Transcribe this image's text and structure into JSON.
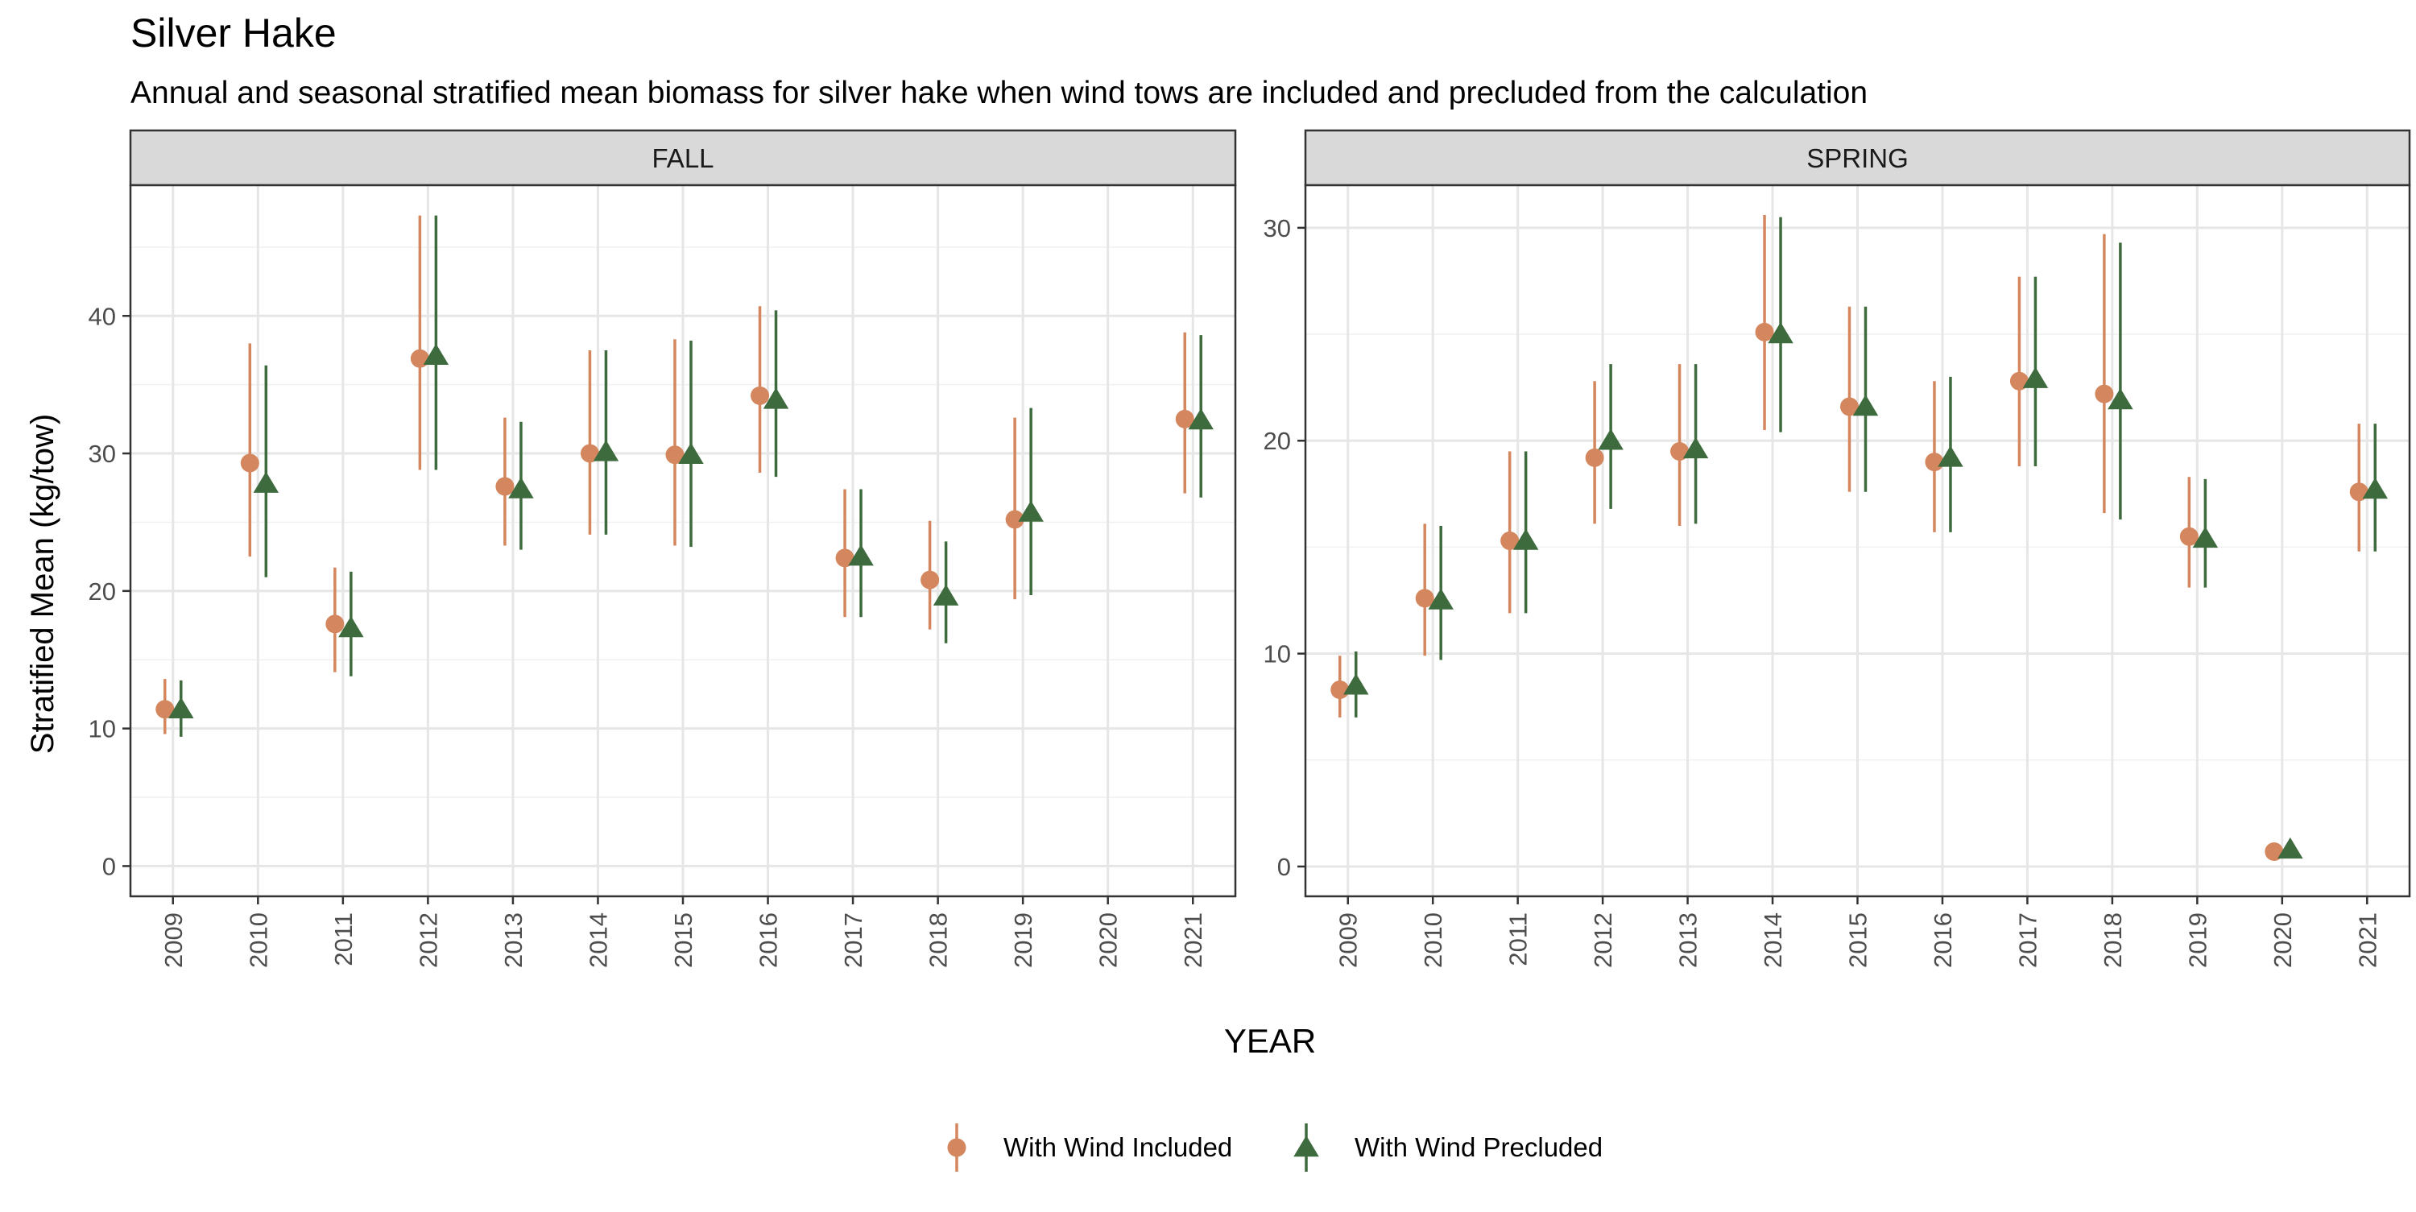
{
  "chart_data": {
    "type": "scatter",
    "title": "Silver Hake",
    "subtitle": "Annual and seasonal stratified mean biomass for silver hake when wind tows are included and precluded from the calculation",
    "xlabel": "YEAR",
    "ylabel": "Stratified Mean (kg/tow)",
    "grid": true,
    "legend_position": "bottom",
    "categories": [
      "2009",
      "2010",
      "2011",
      "2012",
      "2013",
      "2014",
      "2015",
      "2016",
      "2017",
      "2018",
      "2019",
      "2020",
      "2021"
    ],
    "series_styles": [
      {
        "name": "With Wind Included",
        "marker": "circle",
        "color": "#D4875E"
      },
      {
        "name": "With Wind Precluded",
        "marker": "triangle",
        "color": "#3E6B3E"
      }
    ],
    "panels": [
      {
        "label": "FALL",
        "ylim": [
          -2.2,
          49.5
        ],
        "yticks": [
          0,
          10,
          20,
          30,
          40
        ],
        "series": [
          {
            "name": "With Wind Included",
            "values": [
              {
                "year": "2009",
                "mean": 11.4,
                "low": 9.6,
                "high": 13.6
              },
              {
                "year": "2010",
                "mean": 29.3,
                "low": 22.5,
                "high": 38.0
              },
              {
                "year": "2011",
                "mean": 17.6,
                "low": 14.1,
                "high": 21.7
              },
              {
                "year": "2012",
                "mean": 36.9,
                "low": 28.8,
                "high": 47.3
              },
              {
                "year": "2013",
                "mean": 27.6,
                "low": 23.3,
                "high": 32.6
              },
              {
                "year": "2014",
                "mean": 30.0,
                "low": 24.1,
                "high": 37.5
              },
              {
                "year": "2015",
                "mean": 29.9,
                "low": 23.3,
                "high": 38.3
              },
              {
                "year": "2016",
                "mean": 34.2,
                "low": 28.6,
                "high": 40.7
              },
              {
                "year": "2017",
                "mean": 22.4,
                "low": 18.1,
                "high": 27.4
              },
              {
                "year": "2018",
                "mean": 20.8,
                "low": 17.2,
                "high": 25.1
              },
              {
                "year": "2019",
                "mean": 25.2,
                "low": 19.4,
                "high": 32.6
              },
              {
                "year": "2020",
                "mean": null,
                "low": null,
                "high": null
              },
              {
                "year": "2021",
                "mean": 32.5,
                "low": 27.1,
                "high": 38.8
              }
            ]
          },
          {
            "name": "With Wind Precluded",
            "values": [
              {
                "year": "2009",
                "mean": 11.4,
                "low": 9.4,
                "high": 13.5
              },
              {
                "year": "2010",
                "mean": 27.8,
                "low": 21.0,
                "high": 36.4
              },
              {
                "year": "2011",
                "mean": 17.3,
                "low": 13.8,
                "high": 21.4
              },
              {
                "year": "2012",
                "mean": 37.1,
                "low": 28.8,
                "high": 47.3
              },
              {
                "year": "2013",
                "mean": 27.4,
                "low": 23.0,
                "high": 32.3
              },
              {
                "year": "2014",
                "mean": 30.1,
                "low": 24.1,
                "high": 37.5
              },
              {
                "year": "2015",
                "mean": 29.9,
                "low": 23.2,
                "high": 38.2
              },
              {
                "year": "2016",
                "mean": 33.9,
                "low": 28.3,
                "high": 40.4
              },
              {
                "year": "2017",
                "mean": 22.5,
                "low": 18.1,
                "high": 27.4
              },
              {
                "year": "2018",
                "mean": 19.6,
                "low": 16.2,
                "high": 23.6
              },
              {
                "year": "2019",
                "mean": 25.7,
                "low": 19.7,
                "high": 33.3
              },
              {
                "year": "2020",
                "mean": null,
                "low": null,
                "high": null
              },
              {
                "year": "2021",
                "mean": 32.4,
                "low": 26.8,
                "high": 38.6
              }
            ]
          }
        ]
      },
      {
        "label": "SPRING",
        "ylim": [
          -1.4,
          32.0
        ],
        "yticks": [
          0,
          10,
          20,
          30
        ],
        "series": [
          {
            "name": "With Wind Included",
            "values": [
              {
                "year": "2009",
                "mean": 8.3,
                "low": 7.0,
                "high": 9.9
              },
              {
                "year": "2010",
                "mean": 12.6,
                "low": 9.9,
                "high": 16.1
              },
              {
                "year": "2011",
                "mean": 15.3,
                "low": 11.9,
                "high": 19.5
              },
              {
                "year": "2012",
                "mean": 19.2,
                "low": 16.1,
                "high": 22.8
              },
              {
                "year": "2013",
                "mean": 19.5,
                "low": 16.0,
                "high": 23.6
              },
              {
                "year": "2014",
                "mean": 25.1,
                "low": 20.5,
                "high": 30.6
              },
              {
                "year": "2015",
                "mean": 21.6,
                "low": 17.6,
                "high": 26.3
              },
              {
                "year": "2016",
                "mean": 19.0,
                "low": 15.7,
                "high": 22.8
              },
              {
                "year": "2017",
                "mean": 22.8,
                "low": 18.8,
                "high": 27.7
              },
              {
                "year": "2018",
                "mean": 22.2,
                "low": 16.6,
                "high": 29.7
              },
              {
                "year": "2019",
                "mean": 15.5,
                "low": 13.1,
                "high": 18.3
              },
              {
                "year": "2020",
                "mean": 0.7,
                "low": 0.7,
                "high": 0.7
              },
              {
                "year": "2021",
                "mean": 17.6,
                "low": 14.8,
                "high": 20.8
              }
            ]
          },
          {
            "name": "With Wind Precluded",
            "values": [
              {
                "year": "2009",
                "mean": 8.5,
                "low": 7.0,
                "high": 10.1
              },
              {
                "year": "2010",
                "mean": 12.5,
                "low": 9.7,
                "high": 16.0
              },
              {
                "year": "2011",
                "mean": 15.3,
                "low": 11.9,
                "high": 19.5
              },
              {
                "year": "2012",
                "mean": 20.0,
                "low": 16.8,
                "high": 23.6
              },
              {
                "year": "2013",
                "mean": 19.6,
                "low": 16.1,
                "high": 23.6
              },
              {
                "year": "2014",
                "mean": 25.0,
                "low": 20.4,
                "high": 30.5
              },
              {
                "year": "2015",
                "mean": 21.6,
                "low": 17.6,
                "high": 26.3
              },
              {
                "year": "2016",
                "mean": 19.2,
                "low": 15.7,
                "high": 23.0
              },
              {
                "year": "2017",
                "mean": 22.9,
                "low": 18.8,
                "high": 27.7
              },
              {
                "year": "2018",
                "mean": 21.9,
                "low": 16.3,
                "high": 29.3
              },
              {
                "year": "2019",
                "mean": 15.4,
                "low": 13.1,
                "high": 18.2
              },
              {
                "year": "2020",
                "mean": 0.8,
                "low": 0.8,
                "high": 0.8
              },
              {
                "year": "2021",
                "mean": 17.7,
                "low": 14.8,
                "high": 20.8
              }
            ]
          }
        ]
      }
    ]
  }
}
